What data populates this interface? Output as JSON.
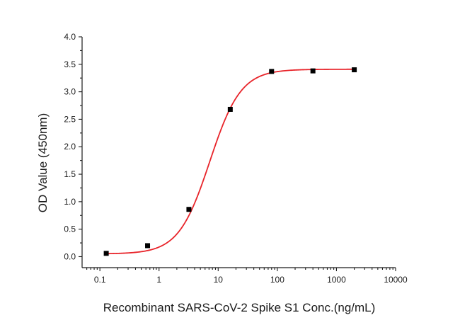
{
  "chart_data": {
    "type": "scatter",
    "title": "",
    "xlabel": "Recombinant SARS-CoV-2 Spike S1 Conc.(ng/mL)",
    "ylabel": "OD Value (450nm)",
    "xscale": "log",
    "xlim": [
      0.05,
      10000
    ],
    "ylim": [
      -0.2,
      4.0
    ],
    "x_tick_values": [
      0.1,
      1,
      10,
      100,
      1000,
      10000
    ],
    "x_tick_labels": [
      "0.1",
      "1",
      "10",
      "100",
      "1000",
      "10000"
    ],
    "y_tick_values": [
      0.0,
      0.5,
      1.0,
      1.5,
      2.0,
      2.5,
      3.0,
      3.5,
      4.0
    ],
    "y_tick_labels": [
      "0.0",
      "0.5",
      "1.0",
      "1.5",
      "2.0",
      "2.5",
      "3.0",
      "3.5",
      "4.0"
    ],
    "grid": false,
    "legend": "none",
    "series": [
      {
        "marker": "square",
        "color": "#000000",
        "x": [
          0.128,
          0.64,
          3.2,
          16,
          80,
          400,
          2000
        ],
        "y": [
          0.06,
          0.2,
          0.86,
          2.68,
          3.37,
          3.38,
          3.4
        ]
      }
    ],
    "fit": {
      "model": "4PL",
      "color": "#e8242a",
      "bottom": 0.05,
      "top": 3.41,
      "ec50": 7.2,
      "hill": 1.65,
      "x_range": [
        0.128,
        2000
      ]
    }
  }
}
